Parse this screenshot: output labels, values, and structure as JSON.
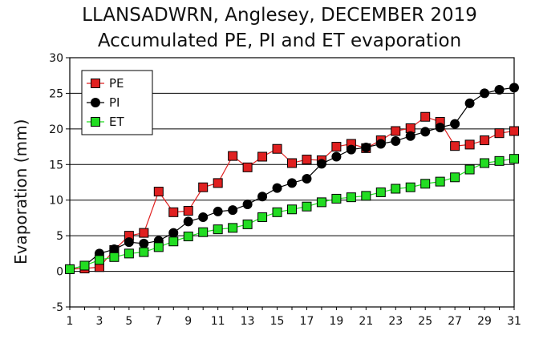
{
  "chart_data": {
    "type": "line",
    "title": "LLANSADWRN, Anglesey, DECEMBER 2019",
    "subtitle": "Accumulated PE,  PI and ET evaporation",
    "ylabel": "Evaporation (mm)",
    "xlabel": "",
    "xlim": [
      1,
      31
    ],
    "ylim": [
      -5,
      30
    ],
    "x_ticks": [
      1,
      3,
      5,
      7,
      9,
      11,
      13,
      15,
      17,
      19,
      21,
      23,
      25,
      27,
      29,
      31
    ],
    "y_ticks": [
      -5,
      0,
      5,
      10,
      15,
      20,
      25,
      30
    ],
    "grid": "horizontal",
    "legend_position": "top-left",
    "x": [
      1,
      2,
      3,
      4,
      5,
      6,
      7,
      8,
      9,
      10,
      11,
      12,
      13,
      14,
      15,
      16,
      17,
      18,
      19,
      20,
      21,
      22,
      23,
      24,
      25,
      26,
      27,
      28,
      29,
      30,
      31
    ],
    "series": [
      {
        "name": "PE",
        "color": "#e02020",
        "marker": "square",
        "values": [
          0.3,
          0.4,
          0.6,
          3.0,
          5.0,
          5.4,
          11.2,
          8.3,
          8.5,
          11.8,
          12.4,
          16.2,
          14.6,
          16.1,
          17.2,
          15.2,
          15.7,
          15.6,
          17.5,
          17.9,
          17.3,
          18.4,
          19.7,
          20.1,
          21.7,
          21.0,
          17.6,
          17.8,
          18.4,
          19.4,
          19.7
        ]
      },
      {
        "name": "PI",
        "color": "#000000",
        "marker": "circle",
        "values": [
          0.3,
          0.8,
          2.5,
          3.1,
          4.1,
          3.9,
          4.3,
          5.4,
          7.0,
          7.6,
          8.4,
          8.6,
          9.4,
          10.5,
          11.7,
          12.4,
          13.0,
          15.1,
          16.1,
          17.1,
          17.4,
          17.9,
          18.3,
          19.0,
          19.6,
          20.2,
          20.7,
          23.6,
          25.0,
          25.5,
          25.8
        ]
      },
      {
        "name": "ET",
        "color": "#22dd22",
        "marker": "square",
        "values": [
          0.3,
          0.8,
          1.6,
          2.0,
          2.5,
          2.7,
          3.4,
          4.2,
          4.9,
          5.5,
          5.9,
          6.1,
          6.6,
          7.6,
          8.3,
          8.7,
          9.1,
          9.7,
          10.2,
          10.4,
          10.6,
          11.1,
          11.6,
          11.8,
          12.3,
          12.6,
          13.2,
          14.3,
          15.2,
          15.5,
          15.8
        ]
      }
    ]
  }
}
